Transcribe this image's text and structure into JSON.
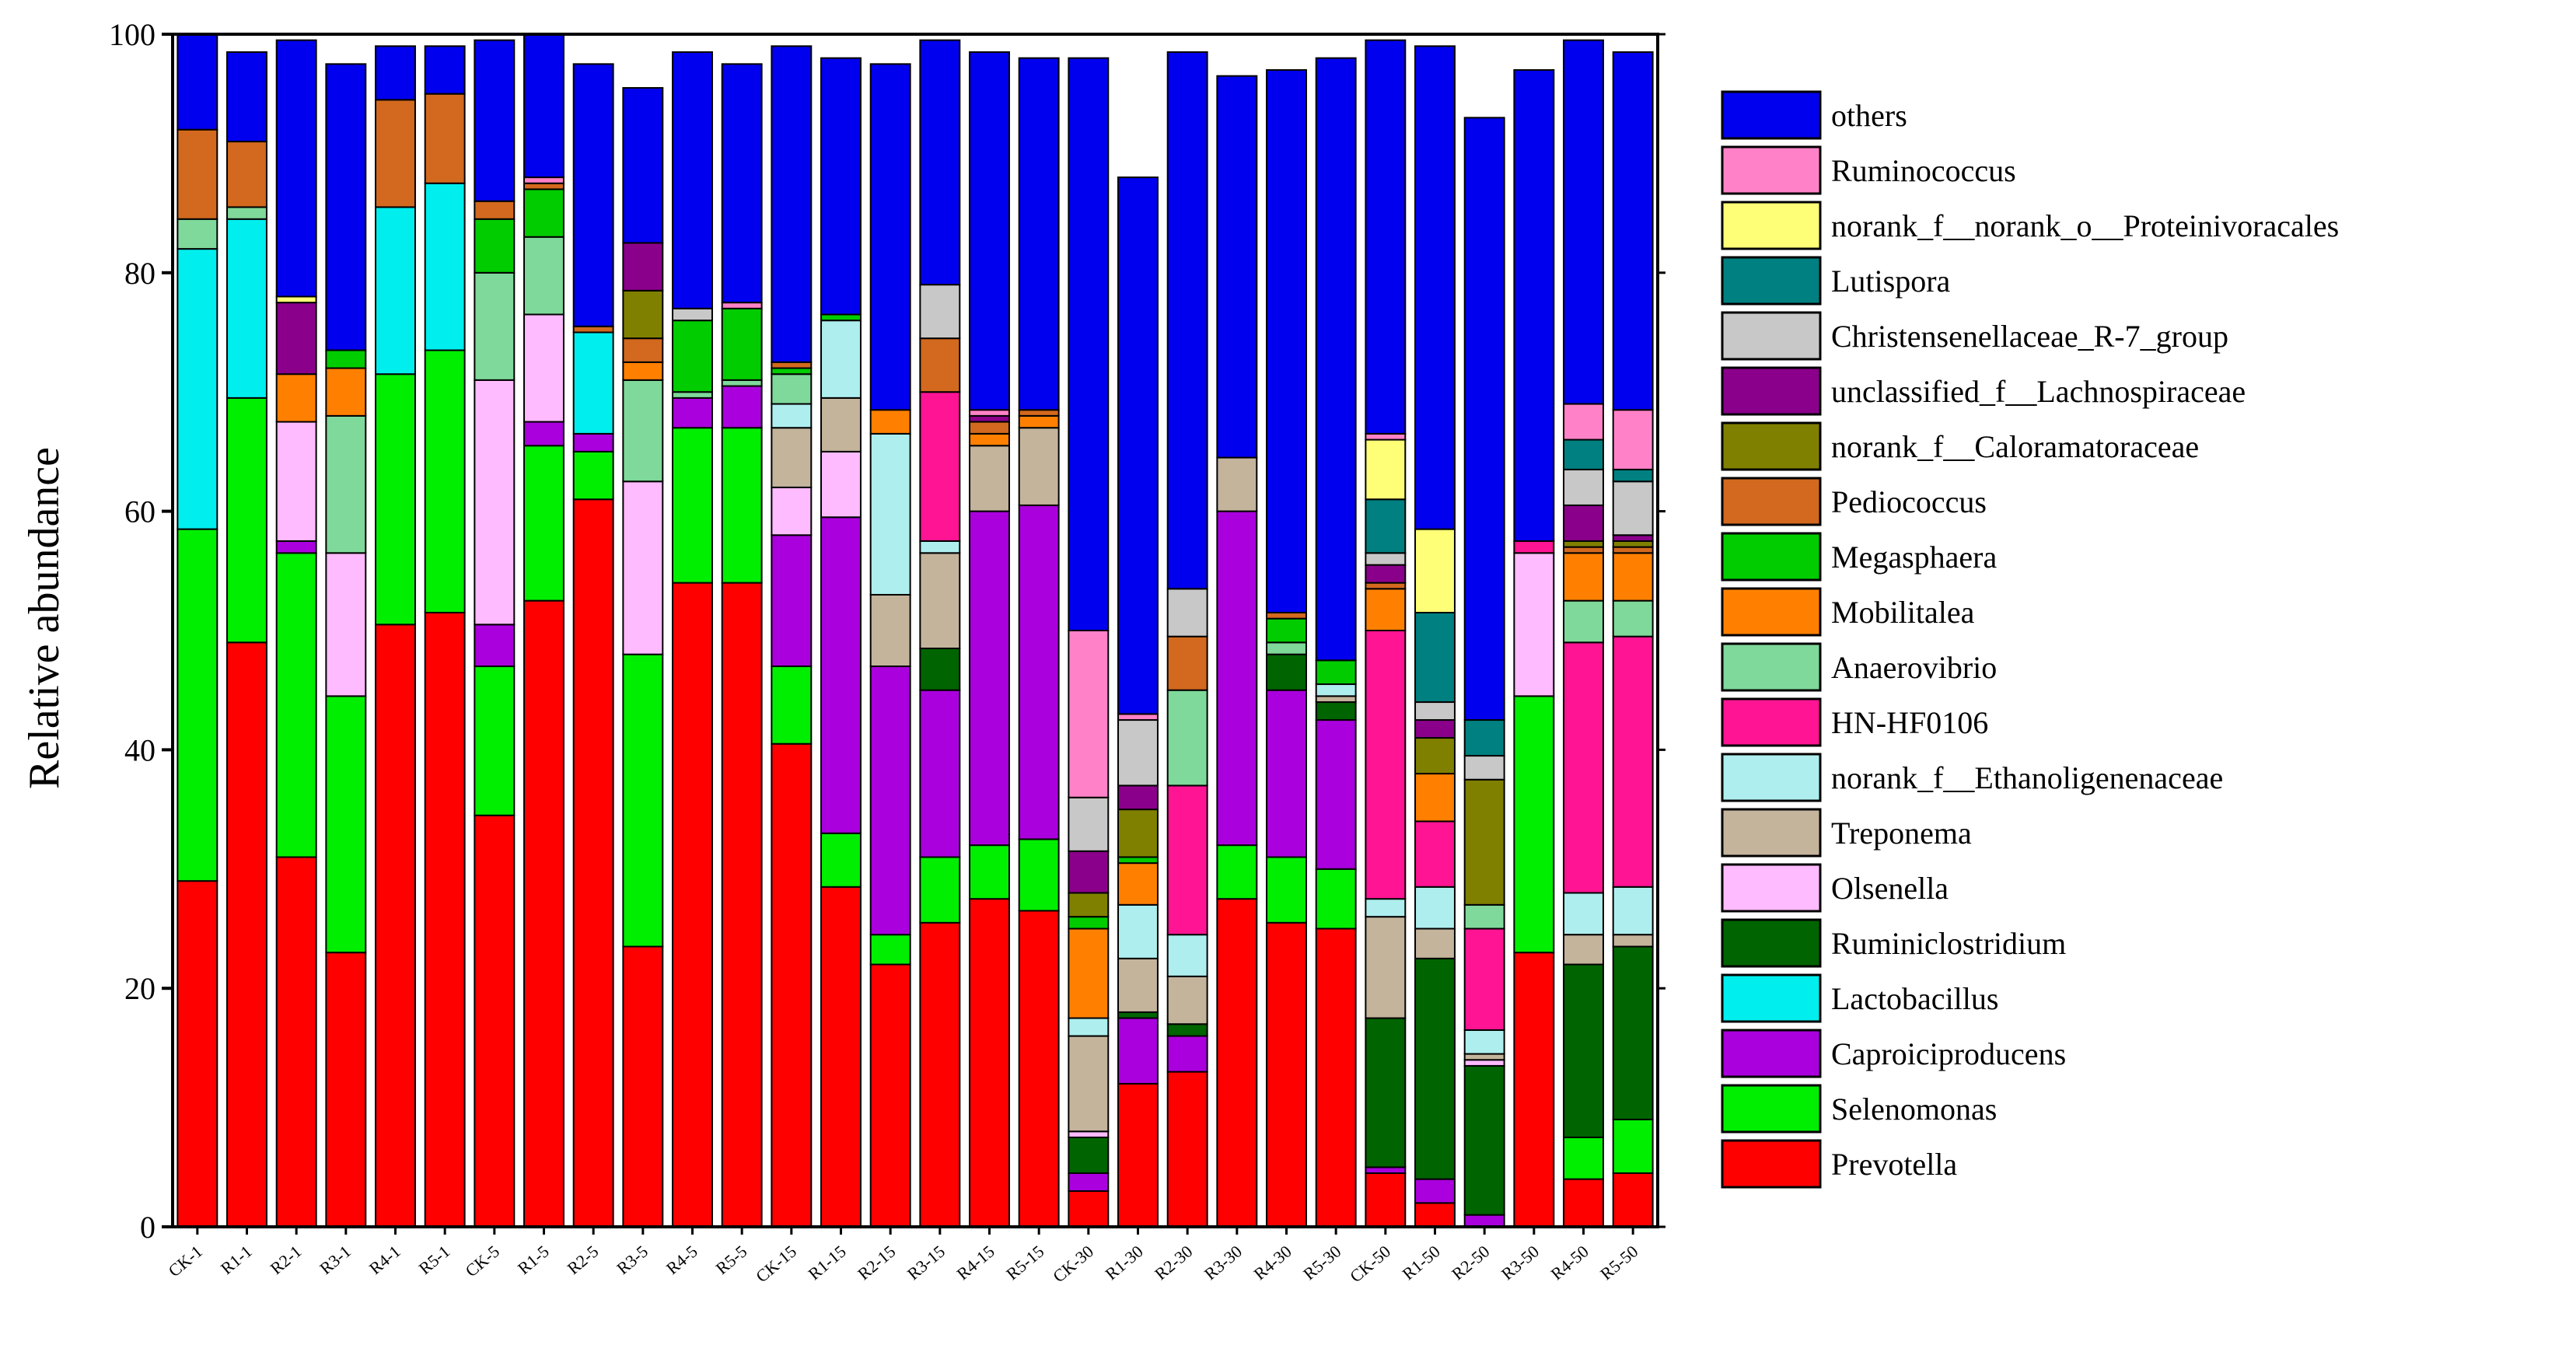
{
  "chart_data": {
    "type": "bar",
    "stacked": true,
    "title": "",
    "xlabel": "",
    "ylabel": "Relative abundance",
    "ylim": [
      0,
      100
    ],
    "yticks": [
      "0",
      "20",
      "40",
      "60",
      "80",
      "100"
    ],
    "grid": false,
    "legend_position": "right",
    "categories": [
      "CK-1",
      "R1-1",
      "R2-1",
      "R3-1",
      "R4-1",
      "R5-1",
      "CK-5",
      "R1-5",
      "R2-5",
      "R3-5",
      "R4-5",
      "R5-5",
      "CK-15",
      "R1-15",
      "R2-15",
      "R3-15",
      "R4-15",
      "R5-15",
      "CK-30",
      "R1-30",
      "R2-30",
      "R3-30",
      "R4-30",
      "R5-30",
      "CK-50",
      "R1-50",
      "R2-50",
      "R3-50",
      "R4-50",
      "R5-50"
    ],
    "series": [
      {
        "name": "Prevotella",
        "color": "#ff0000",
        "values": [
          29,
          49,
          31,
          23,
          50.5,
          51.5,
          34.5,
          52.5,
          61,
          23.5,
          54,
          54,
          40.5,
          28.5,
          22,
          25.5,
          27.5,
          26.5,
          3,
          12,
          13,
          27.5,
          25.5,
          25,
          4.5,
          2,
          0,
          23,
          4,
          4.5
        ]
      },
      {
        "name": "Selenomonas",
        "color": "#00ee00",
        "values": [
          29.5,
          20.5,
          25.5,
          21.5,
          21,
          22,
          12.5,
          13,
          4,
          24.5,
          13,
          13,
          6.5,
          4.5,
          2.5,
          5.5,
          4.5,
          6,
          0,
          0,
          0,
          4.5,
          5.5,
          5,
          0,
          0,
          0,
          21.5,
          3.5,
          4.5
        ]
      },
      {
        "name": "Caproiciproducens",
        "color": "#aa00dd",
        "values": [
          0,
          0,
          1,
          0,
          0,
          0,
          3.5,
          2,
          1.5,
          0,
          2.5,
          3.5,
          11,
          26.5,
          22.5,
          14,
          28,
          28,
          1.5,
          5.5,
          3,
          28,
          14,
          12.5,
          0.5,
          2,
          1,
          0,
          0,
          0
        ]
      },
      {
        "name": "Lactobacillus",
        "color": "#00eeee",
        "values": [
          23.5,
          15,
          0,
          0,
          14,
          14,
          0,
          0,
          8.5,
          0,
          0,
          0,
          0,
          0,
          0,
          0,
          0,
          0,
          0,
          0,
          0,
          0,
          0,
          0,
          0,
          0,
          0,
          0,
          0,
          0
        ]
      },
      {
        "name": "Ruminiclostridium",
        "color": "#006400",
        "values": [
          0,
          0,
          0,
          0,
          0,
          0,
          0,
          0,
          0,
          0,
          0,
          0,
          0,
          0,
          0,
          3.5,
          0,
          0,
          3,
          0.5,
          1,
          0,
          3,
          1.5,
          12.5,
          18.5,
          12.5,
          0,
          14.5,
          14.5
        ]
      },
      {
        "name": "Olsenella",
        "color": "#ffbbff",
        "values": [
          0,
          0,
          10,
          12,
          0,
          0,
          20.5,
          9,
          0,
          14.5,
          0,
          0,
          4,
          5.5,
          0,
          0,
          0,
          0,
          0.5,
          0,
          0,
          0,
          0,
          0,
          0,
          0,
          0.5,
          12,
          0,
          0
        ]
      },
      {
        "name": "Treponema",
        "color": "#c4b49c",
        "values": [
          0,
          0,
          0,
          0,
          0,
          0,
          0,
          0,
          0,
          0,
          0,
          0,
          5,
          4.5,
          6,
          8,
          5.5,
          6.5,
          8,
          4.5,
          4,
          4.5,
          0,
          0.5,
          8.5,
          2.5,
          0.5,
          0,
          2.5,
          1
        ]
      },
      {
        "name": "norank_f__Ethanoligenenaceae",
        "color": "#aeeeee",
        "values": [
          0,
          0,
          0,
          0,
          0,
          0,
          0,
          0,
          0,
          0,
          0,
          0,
          2,
          6.5,
          13.5,
          1,
          0,
          0,
          1.5,
          4.5,
          3.5,
          0,
          0,
          1,
          1.5,
          3.5,
          2,
          0,
          3.5,
          4
        ]
      },
      {
        "name": "HN-HF0106",
        "color": "#ff1493",
        "values": [
          0,
          0,
          0,
          0,
          0,
          0,
          0,
          0,
          0,
          0,
          0,
          0,
          0,
          0,
          0,
          12.5,
          0,
          0,
          0,
          0,
          12.5,
          0,
          0,
          0,
          22.5,
          5.5,
          8.5,
          1,
          21,
          21
        ]
      },
      {
        "name": "Anaerovibrio",
        "color": "#7fd99a",
        "values": [
          2.5,
          1,
          0,
          11.5,
          0,
          0,
          9,
          6.5,
          0,
          8.5,
          0.5,
          0.5,
          2.5,
          0,
          0,
          0,
          0,
          0,
          0,
          0,
          8,
          0,
          1,
          0,
          0,
          0,
          2,
          0,
          3.5,
          3
        ]
      },
      {
        "name": "Mobilitalea",
        "color": "#ff8000",
        "values": [
          0,
          0,
          4,
          4,
          0,
          0,
          0,
          0,
          0,
          1.5,
          0,
          0,
          0,
          0,
          2,
          0,
          1,
          1,
          7.5,
          3.5,
          0,
          0,
          0,
          0,
          3.5,
          4,
          0,
          0,
          4,
          4
        ]
      },
      {
        "name": "Megasphaera",
        "color": "#00cc00",
        "values": [
          0,
          0,
          0,
          1.5,
          0,
          0,
          4.5,
          4,
          0,
          0,
          6,
          6,
          0.5,
          0.5,
          0,
          0,
          0,
          0,
          1,
          0.5,
          0,
          0,
          2,
          2,
          0,
          0,
          0,
          0,
          0,
          0
        ]
      },
      {
        "name": "Pediococcus",
        "color": "#d2691e",
        "values": [
          7.5,
          5.5,
          0,
          0,
          9,
          7.5,
          1.5,
          0.5,
          0.5,
          2,
          0,
          0,
          0.5,
          0,
          0,
          4.5,
          1,
          0.5,
          0,
          0,
          4.5,
          0,
          0.5,
          0,
          0.5,
          0,
          0,
          0,
          0.5,
          0.5
        ]
      },
      {
        "name": "norank_f__Caloramatoraceae",
        "color": "#808000",
        "values": [
          0,
          0,
          0,
          0,
          0,
          0,
          0,
          0,
          0,
          4,
          0,
          0,
          0,
          0,
          0,
          0,
          0,
          0,
          2,
          4,
          0,
          0,
          0,
          0,
          0,
          3,
          10.5,
          0,
          0.5,
          0.5
        ]
      },
      {
        "name": "unclassified_f__Lachnospiraceae",
        "color": "#8b008b",
        "values": [
          0,
          0,
          6,
          0,
          0,
          0,
          0,
          0,
          0,
          4,
          0,
          0,
          0,
          0,
          0,
          0,
          0.5,
          0,
          3.5,
          2,
          0,
          0,
          0,
          0,
          1.5,
          1.5,
          0,
          0,
          3,
          0.5
        ]
      },
      {
        "name": "Christensenellaceae_R-7_group",
        "color": "#c8c8c8",
        "values": [
          0,
          0,
          0,
          0,
          0,
          0,
          0,
          0,
          0,
          0,
          1,
          0,
          0,
          0,
          0,
          4.5,
          0,
          0,
          4.5,
          5.5,
          4,
          0,
          0,
          0,
          1,
          1.5,
          2,
          0,
          3,
          4.5
        ]
      },
      {
        "name": "Lutispora",
        "color": "#008080",
        "values": [
          0,
          0,
          0,
          0,
          0,
          0,
          0,
          0,
          0,
          0,
          0,
          0,
          0,
          0,
          0,
          0,
          0,
          0,
          0,
          0,
          0,
          0,
          0,
          0,
          4.5,
          7.5,
          3,
          0,
          2.5,
          1
        ]
      },
      {
        "name": "norank_f__norank_o__Proteinivoracales",
        "color": "#ffff77",
        "values": [
          0,
          0,
          0.5,
          0,
          0,
          0,
          0,
          0,
          0,
          0,
          0,
          0,
          0,
          0,
          0,
          0,
          0,
          0,
          0,
          0,
          0,
          0,
          0,
          0,
          5,
          7,
          0,
          0,
          0,
          0
        ]
      },
      {
        "name": "Ruminococcus",
        "color": "#ff82c8",
        "values": [
          0,
          0,
          0,
          0,
          0,
          0,
          0,
          0.5,
          0,
          0,
          0,
          0.5,
          0,
          0,
          0,
          0,
          0.5,
          0,
          14,
          0.5,
          0,
          0,
          0,
          0,
          0.5,
          0,
          0,
          0,
          3,
          5
        ]
      },
      {
        "name": "others",
        "color": "#0000ee",
        "values": [
          8,
          7.5,
          21.5,
          24,
          4.5,
          4,
          13.5,
          12,
          22,
          13,
          21.5,
          20,
          26.5,
          21.5,
          29,
          20.5,
          30,
          29.5,
          48,
          45,
          45,
          32,
          45.5,
          50.5,
          33,
          40.5,
          50.5,
          39.5,
          30.5,
          30
        ]
      }
    ],
    "legend_order": [
      "others",
      "Ruminococcus",
      "norank_f__norank_o__Proteinivoracales",
      "Lutispora",
      "Christensenellaceae_R-7_group",
      "unclassified_f__Lachnospiraceae",
      "norank_f__Caloramatoraceae",
      "Pediococcus",
      "Megasphaera",
      "Mobilitalea",
      "Anaerovibrio",
      "HN-HF0106",
      "norank_f__Ethanoligenenaceae",
      "Treponema",
      "Olsenella",
      "Ruminiclostridium",
      "Lactobacillus",
      "Caproiciproducens",
      "Selenomonas",
      "Prevotella"
    ]
  }
}
